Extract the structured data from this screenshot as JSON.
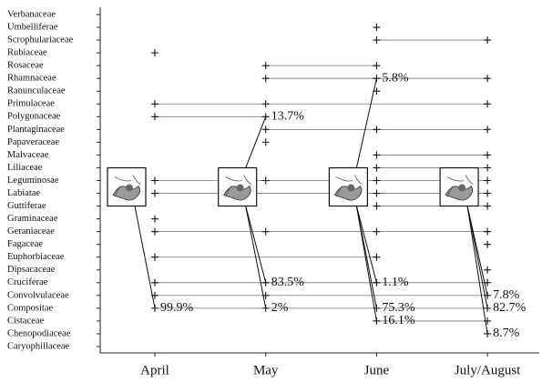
{
  "chart_data": {
    "type": "presence",
    "categories": [
      "Verbanaceae",
      "Umbelliferae",
      "Scrophulariaceae",
      "Rubiaceae",
      "Rosaceae",
      "Rhamnaceae",
      "Ranunculaceae",
      "Primulaceae",
      "Polygonaceae",
      "Plantaginaceae",
      "Papaveraceae",
      "Malvaceae",
      "Liliaceae",
      "Leguminosae",
      "Labiatae",
      "Guttiferae",
      "Graminaceae",
      "Geraniaceae",
      "Fagaceae",
      "Euphorbiaceae",
      "Dipsacaceae",
      "Cruciferae",
      "Convolvulaceae",
      "Compositae",
      "Cistaceae",
      "Chenopodiaceae",
      "Caryophillaceae"
    ],
    "series": [
      {
        "name": "April",
        "values": [
          null,
          null,
          null,
          1,
          null,
          null,
          null,
          1,
          1,
          null,
          null,
          null,
          null,
          1,
          1,
          null,
          1,
          1,
          null,
          1,
          null,
          1,
          1,
          1,
          null,
          null,
          null
        ],
        "shares": [
          null,
          null,
          null,
          null,
          null,
          null,
          null,
          null,
          null,
          null,
          null,
          null,
          null,
          null,
          null,
          null,
          null,
          null,
          null,
          null,
          null,
          null,
          null,
          99.9,
          null,
          null,
          null
        ],
        "share_labels": [
          null,
          null,
          null,
          null,
          null,
          null,
          null,
          null,
          null,
          null,
          null,
          null,
          null,
          null,
          null,
          null,
          null,
          null,
          null,
          null,
          null,
          null,
          null,
          "99.9%",
          null,
          null,
          null
        ]
      },
      {
        "name": "May",
        "values": [
          null,
          null,
          null,
          null,
          1,
          1,
          null,
          1,
          1,
          1,
          1,
          null,
          null,
          1,
          null,
          null,
          null,
          1,
          null,
          null,
          null,
          1,
          1,
          1,
          null,
          null,
          null
        ],
        "shares": [
          null,
          null,
          null,
          null,
          null,
          null,
          null,
          null,
          13.7,
          null,
          null,
          null,
          null,
          null,
          null,
          null,
          null,
          null,
          null,
          null,
          null,
          83.5,
          null,
          2,
          null,
          null,
          null
        ],
        "share_labels": [
          null,
          null,
          null,
          null,
          null,
          null,
          null,
          null,
          "13.7%",
          null,
          null,
          null,
          null,
          null,
          null,
          null,
          null,
          null,
          null,
          null,
          null,
          "83.5%",
          null,
          "2%",
          null,
          null,
          null
        ]
      },
      {
        "name": "June",
        "values": [
          null,
          1,
          1,
          null,
          1,
          1,
          1,
          null,
          null,
          1,
          null,
          1,
          1,
          1,
          1,
          1,
          null,
          1,
          null,
          1,
          null,
          1,
          null,
          1,
          1,
          null,
          null
        ],
        "shares": [
          null,
          null,
          null,
          null,
          null,
          5.8,
          null,
          null,
          null,
          null,
          null,
          null,
          null,
          null,
          null,
          null,
          null,
          null,
          null,
          null,
          null,
          1.1,
          null,
          75.3,
          16.1,
          null,
          null
        ],
        "share_labels": [
          null,
          null,
          null,
          null,
          null,
          "5.8%",
          null,
          null,
          null,
          null,
          null,
          null,
          null,
          null,
          null,
          null,
          null,
          null,
          null,
          null,
          null,
          "1.1%",
          null,
          "75.3%",
          "16.1%",
          null,
          null
        ]
      },
      {
        "name": "July/August",
        "values": [
          null,
          null,
          1,
          null,
          null,
          1,
          null,
          1,
          null,
          1,
          null,
          1,
          1,
          1,
          1,
          1,
          null,
          1,
          1,
          null,
          1,
          1,
          1,
          1,
          1,
          1,
          null
        ],
        "shares": [
          null,
          null,
          null,
          null,
          null,
          null,
          null,
          null,
          null,
          null,
          null,
          null,
          null,
          null,
          null,
          null,
          null,
          null,
          null,
          null,
          null,
          null,
          7.8,
          82.7,
          null,
          8.7,
          null
        ],
        "share_labels": [
          null,
          null,
          null,
          null,
          null,
          null,
          null,
          null,
          null,
          null,
          null,
          null,
          null,
          null,
          null,
          null,
          null,
          null,
          null,
          null,
          null,
          null,
          "7.8%",
          "82.7%",
          null,
          "8.7%",
          null
        ]
      }
    ]
  }
}
